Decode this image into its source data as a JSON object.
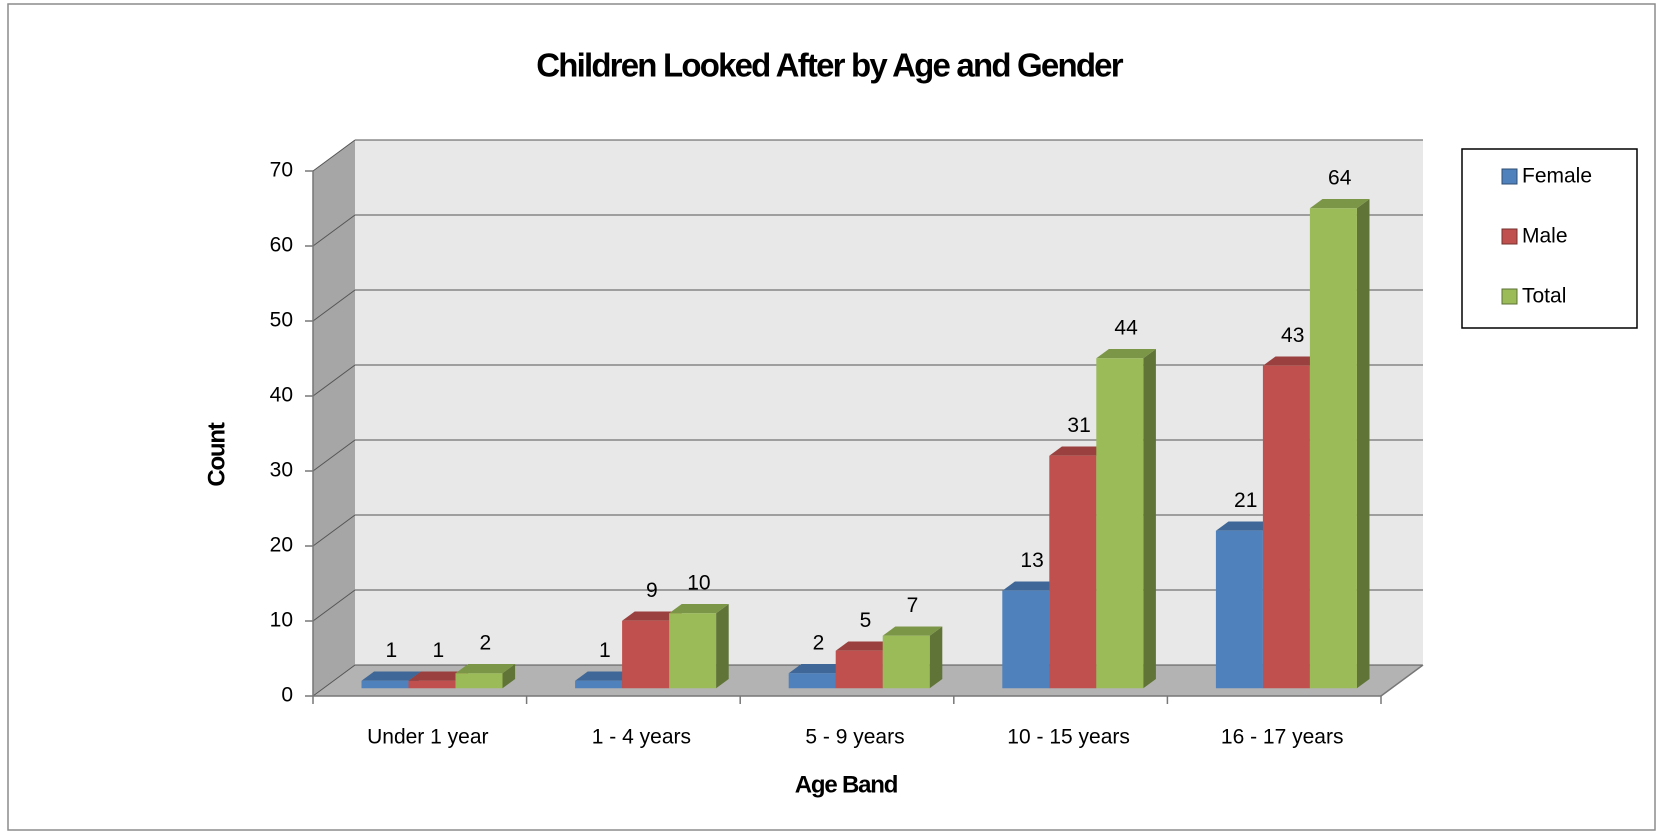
{
  "chart_data": {
    "type": "bar3d",
    "title": "Children Looked After by Age and Gender",
    "x_label": "Age Band",
    "y_label": "Count",
    "categories": [
      "Under 1 year",
      "1 - 4 years",
      "5 - 9 years",
      "10 - 15 years",
      "16 - 17 years"
    ],
    "series": [
      {
        "name": "Female",
        "color": "#4f81bd",
        "values": [
          1,
          1,
          2,
          13,
          21
        ]
      },
      {
        "name": "Male",
        "color": "#c0504d",
        "values": [
          1,
          9,
          5,
          31,
          43
        ]
      },
      {
        "name": "Total",
        "color": "#9bbb59",
        "values": [
          2,
          10,
          7,
          44,
          64
        ]
      }
    ],
    "ylim": [
      0,
      70
    ],
    "yticks": [
      0,
      10,
      20,
      30,
      40,
      50,
      60,
      70
    ],
    "grid": true,
    "legend": "right",
    "data_labels": true
  }
}
